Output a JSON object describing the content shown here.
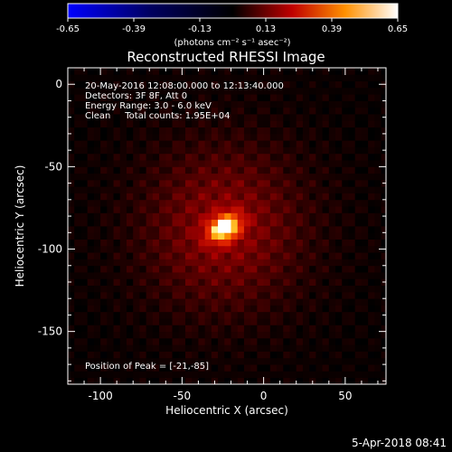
{
  "colorbar": {
    "ticks": [
      "-0.65",
      "-0.39",
      "-0.13",
      "0.13",
      "0.39",
      "0.65"
    ],
    "unit_label": "(photons cm⁻² s⁻¹ asec⁻²)"
  },
  "chart_data": {
    "type": "heatmap",
    "title": "Reconstructed RHESSI Image",
    "xlabel": "Heliocentric X (arcsec)",
    "ylabel": "Heliocentric Y (arcsec)",
    "xlim": [
      -120,
      75
    ],
    "ylim": [
      -182,
      10
    ],
    "xticks": [
      -100,
      -50,
      0,
      50
    ],
    "yticks": [
      0,
      -50,
      -100,
      -150
    ],
    "clim": [
      -0.65,
      0.65
    ],
    "colormap": "rhessi-thermal (blue-black-red-yellow-white)",
    "annotations": [
      "20-May-2016 12:08:00.000 to 12:13:40.000",
      "Detectors: 3F 8F, Att 0",
      "Energy Range: 3.0 - 6.0 keV",
      "Clean     Total counts: 1.95E+04"
    ],
    "peak_label": "Position of Peak = [-21,-85]",
    "peak": {
      "x": -21,
      "y": -85,
      "value": 0.65
    },
    "source": {
      "x": -24,
      "y": -87,
      "sigma_x": 7,
      "sigma_y": 5
    }
  },
  "footer": {
    "date": "5-Apr-2018 08:41"
  }
}
